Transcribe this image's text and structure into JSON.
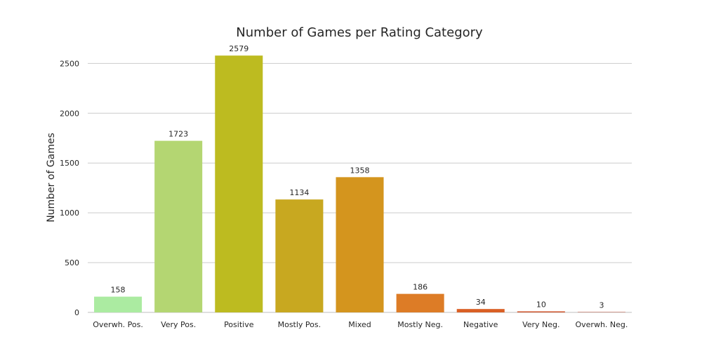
{
  "chart_data": {
    "type": "bar",
    "title": "Number of Games per Rating Category",
    "xlabel": "",
    "ylabel": "Number of Games",
    "ylim": [
      0,
      2700
    ],
    "yticks": [
      0,
      500,
      1000,
      1500,
      2000,
      2500
    ],
    "grid": true,
    "categories": [
      "Overwh. Pos.",
      "Very Pos.",
      "Positive",
      "Mostly Pos.",
      "Mixed",
      "Mostly Neg.",
      "Negative",
      "Very Neg.",
      "Overwh. Neg."
    ],
    "values": [
      158,
      1723,
      2579,
      1134,
      1358,
      186,
      34,
      10,
      3
    ],
    "colors": [
      "#abeba1",
      "#b4d672",
      "#bdbb20",
      "#c8a820",
      "#d4951e",
      "#dd7c26",
      "#d95f24",
      "#cc4a1e",
      "#b83418"
    ]
  }
}
